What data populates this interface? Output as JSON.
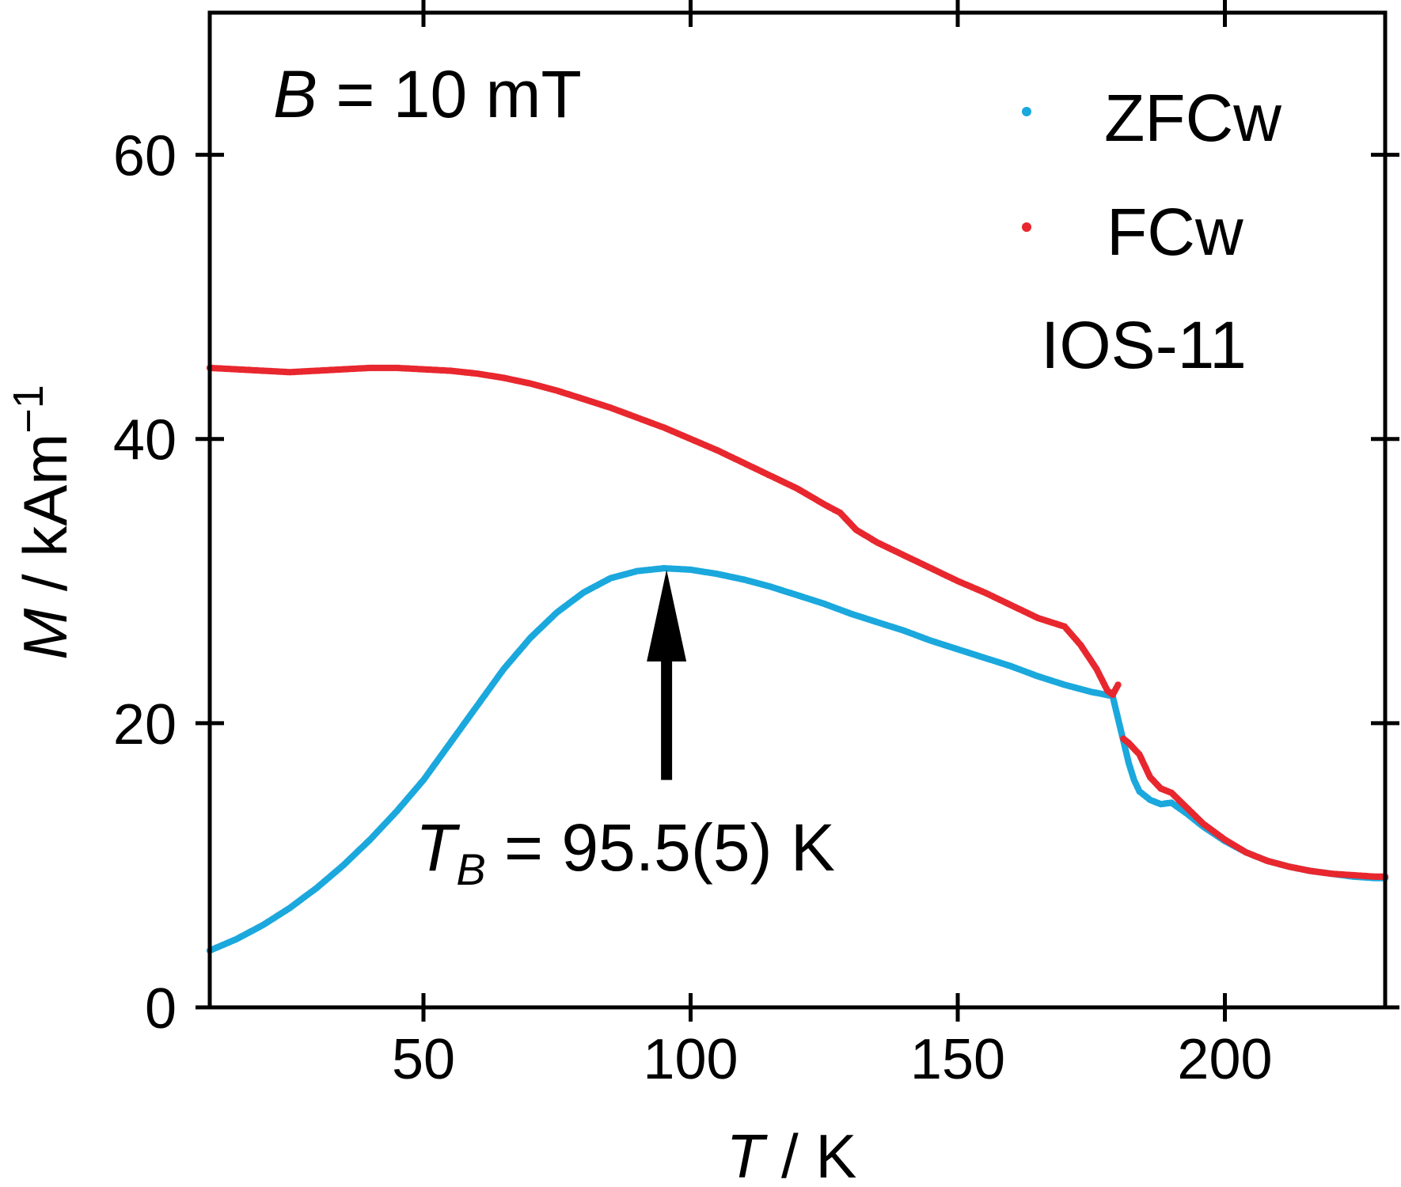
{
  "chart_data": {
    "type": "scatter",
    "title": "",
    "xlabel": {
      "symbol": "T",
      "unit": "K"
    },
    "ylabel": {
      "symbol": "M",
      "unit": "kAm",
      "unit_exp": "−1"
    },
    "xlim": [
      10,
      230
    ],
    "ylim": [
      0,
      70
    ],
    "x_ticks": [
      50,
      100,
      150,
      200
    ],
    "y_ticks": [
      0,
      20,
      40,
      60
    ],
    "x_tick_labels": [
      "50",
      "100",
      "150",
      "200"
    ],
    "y_tick_labels": [
      "0",
      "20",
      "40",
      "60"
    ],
    "grid": false,
    "legend_position": "top-right",
    "annotations": {
      "field": {
        "symbol": "B",
        "text": " = 10 mT"
      },
      "sample": "IOS-11",
      "blocking": {
        "symbol": "T",
        "subscript": "B",
        "text": " = 95.5(5) K"
      },
      "arrow": {
        "x": 95.5,
        "y_start": 16,
        "y_end": 30.8
      }
    },
    "series": [
      {
        "name": "ZFCw",
        "color": "#1aa8dd",
        "points": [
          [
            10,
            4.0
          ],
          [
            15,
            4.8
          ],
          [
            20,
            5.8
          ],
          [
            25,
            7.0
          ],
          [
            30,
            8.4
          ],
          [
            35,
            10.0
          ],
          [
            40,
            11.8
          ],
          [
            45,
            13.8
          ],
          [
            50,
            16.0
          ],
          [
            55,
            18.6
          ],
          [
            60,
            21.2
          ],
          [
            65,
            23.8
          ],
          [
            70,
            26.0
          ],
          [
            75,
            27.8
          ],
          [
            80,
            29.2
          ],
          [
            85,
            30.2
          ],
          [
            90,
            30.7
          ],
          [
            95,
            30.9
          ],
          [
            100,
            30.8
          ],
          [
            105,
            30.5
          ],
          [
            110,
            30.1
          ],
          [
            115,
            29.6
          ],
          [
            120,
            29.0
          ],
          [
            125,
            28.4
          ],
          [
            130,
            27.7
          ],
          [
            135,
            27.1
          ],
          [
            140,
            26.5
          ],
          [
            145,
            25.8
          ],
          [
            150,
            25.2
          ],
          [
            155,
            24.6
          ],
          [
            160,
            24.0
          ],
          [
            165,
            23.3
          ],
          [
            170,
            22.7
          ],
          [
            175,
            22.2
          ],
          [
            179,
            21.9
          ],
          [
            182,
            17.2
          ],
          [
            183,
            16.0
          ],
          [
            184,
            15.2
          ],
          [
            186,
            14.6
          ],
          [
            188,
            14.3
          ],
          [
            190,
            14.4
          ],
          [
            193,
            13.6
          ],
          [
            196,
            12.7
          ],
          [
            200,
            11.7
          ],
          [
            204,
            10.9
          ],
          [
            208,
            10.3
          ],
          [
            212,
            9.9
          ],
          [
            216,
            9.6
          ],
          [
            220,
            9.4
          ],
          [
            224,
            9.2
          ],
          [
            228,
            9.1
          ],
          [
            230,
            9.1
          ]
        ]
      },
      {
        "name": "FCw",
        "color": "#e8272e",
        "points": [
          [
            10,
            45.0
          ],
          [
            15,
            44.9
          ],
          [
            20,
            44.8
          ],
          [
            25,
            44.7
          ],
          [
            30,
            44.8
          ],
          [
            35,
            44.9
          ],
          [
            40,
            45.0
          ],
          [
            45,
            45.0
          ],
          [
            50,
            44.9
          ],
          [
            55,
            44.8
          ],
          [
            60,
            44.6
          ],
          [
            65,
            44.3
          ],
          [
            70,
            43.9
          ],
          [
            75,
            43.4
          ],
          [
            80,
            42.8
          ],
          [
            85,
            42.2
          ],
          [
            90,
            41.5
          ],
          [
            95,
            40.8
          ],
          [
            100,
            40.0
          ],
          [
            105,
            39.2
          ],
          [
            110,
            38.3
          ],
          [
            115,
            37.4
          ],
          [
            120,
            36.5
          ],
          [
            125,
            35.4
          ],
          [
            128,
            34.8
          ],
          [
            131,
            33.6
          ],
          [
            135,
            32.7
          ],
          [
            140,
            31.8
          ],
          [
            145,
            30.9
          ],
          [
            150,
            30.0
          ],
          [
            155,
            29.2
          ],
          [
            160,
            28.3
          ],
          [
            165,
            27.4
          ],
          [
            170,
            26.8
          ],
          [
            173,
            25.5
          ],
          [
            176,
            23.8
          ],
          [
            178,
            22.3
          ],
          [
            179,
            22.0
          ],
          [
            180,
            22.7
          ],
          [
            181,
            18.9
          ],
          [
            182,
            18.6
          ],
          [
            184,
            17.8
          ],
          [
            186,
            16.2
          ],
          [
            188,
            15.4
          ],
          [
            190,
            15.1
          ],
          [
            193,
            14.0
          ],
          [
            196,
            12.9
          ],
          [
            200,
            11.8
          ],
          [
            204,
            10.9
          ],
          [
            208,
            10.3
          ],
          [
            212,
            9.9
          ],
          [
            216,
            9.6
          ],
          [
            220,
            9.4
          ],
          [
            224,
            9.3
          ],
          [
            228,
            9.2
          ],
          [
            230,
            9.2
          ]
        ]
      }
    ]
  }
}
